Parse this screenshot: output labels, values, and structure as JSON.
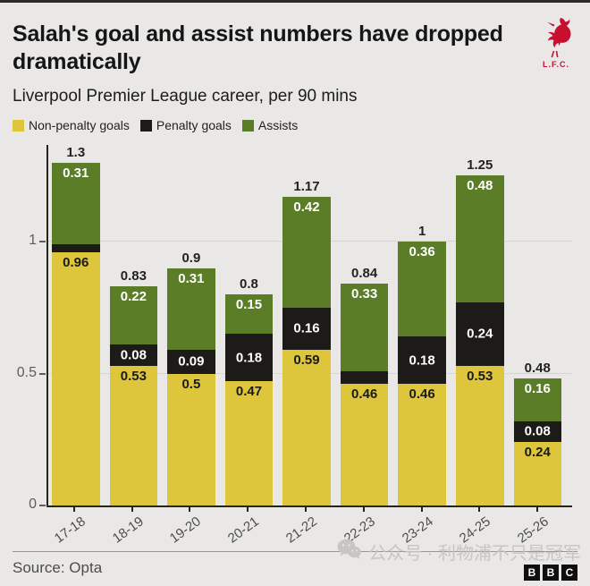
{
  "colors": {
    "background": "#e9e8e6",
    "non_penalty": "#ddc63c",
    "penalty": "#1d1b18",
    "assists": "#5c7d27",
    "club_red": "#c8102e",
    "grid": "#d7d6d3",
    "axis": "#26231f"
  },
  "header": {
    "title": "Salah's goal and assist numbers have dropped dramatically",
    "subtitle": "Liverpool Premier League career, per 90 mins",
    "club_badge_label": "L.F.C."
  },
  "chart_data": {
    "type": "bar",
    "stacked": true,
    "title": "Salah's goal and assist numbers have dropped dramatically",
    "subtitle": "Liverpool Premier League career, per 90 mins",
    "categories": [
      "17-18",
      "18-19",
      "19-20",
      "20-21",
      "21-22",
      "22-23",
      "23-24",
      "24-25",
      "25-26"
    ],
    "series": [
      {
        "name": "Non-penalty goals",
        "color": "#ddc63c",
        "label_color": "#1a1a1a",
        "label_position": "top",
        "values": [
          0.96,
          0.53,
          0.5,
          0.47,
          0.59,
          0.46,
          0.46,
          0.53,
          0.24
        ],
        "labels": [
          "0.96",
          "0.53",
          "0.5",
          "0.47",
          "0.59",
          "0.46",
          "0.46",
          "0.53",
          "0.24"
        ]
      },
      {
        "name": "Penalty goals",
        "color": "#1d1b18",
        "label_color": "#ffffff",
        "label_position": "center",
        "values": [
          0.03,
          0.08,
          0.09,
          0.18,
          0.16,
          0.05,
          0.18,
          0.24,
          0.08
        ],
        "labels": [
          "",
          "0.08",
          "0.09",
          "0.18",
          "0.16",
          "",
          "0.18",
          "0.24",
          "0.08"
        ]
      },
      {
        "name": "Assists",
        "color": "#5c7d27",
        "label_color": "#ffffff",
        "label_position": "top",
        "values": [
          0.31,
          0.22,
          0.31,
          0.15,
          0.42,
          0.33,
          0.36,
          0.48,
          0.16
        ],
        "labels": [
          "0.31",
          "0.22",
          "0.31",
          "0.15",
          "0.42",
          "0.33",
          "0.36",
          "0.48",
          "0.16"
        ]
      }
    ],
    "totals": [
      "1.3",
      "0.83",
      "0.9",
      "0.8",
      "1.17",
      "0.84",
      "1",
      "1.25",
      "0.48"
    ],
    "y_ticks": [
      {
        "label": "0",
        "value": 0
      },
      {
        "label": "0.5",
        "value": 0.5
      },
      {
        "label": "1",
        "value": 1
      }
    ],
    "ylim": [
      0,
      1.35
    ],
    "grid": true,
    "legend_position": "top",
    "xlabel": "",
    "ylabel": ""
  },
  "footer": {
    "source": "Source: Opta",
    "watermark_text": "公众号 · 利物浦不只是冠军",
    "bbc_blocks": [
      "B",
      "B",
      "C"
    ]
  }
}
